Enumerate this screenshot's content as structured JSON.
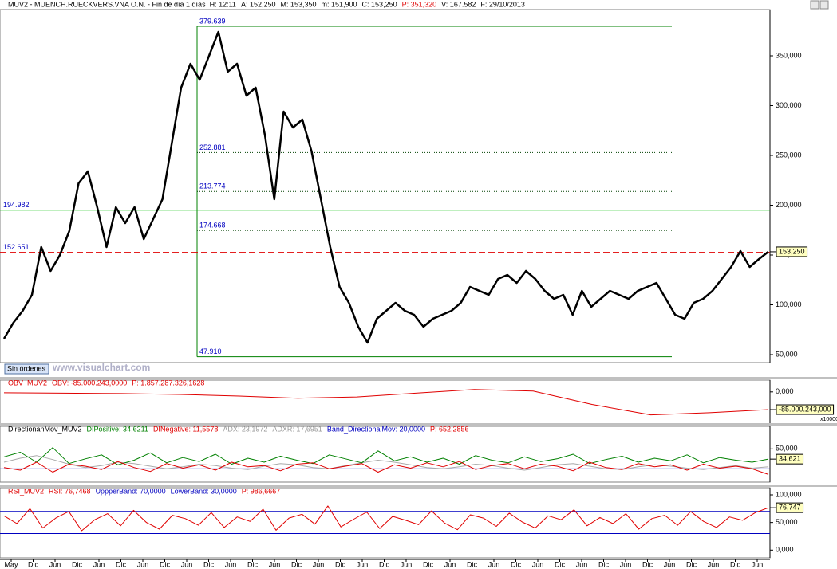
{
  "chart_data": [
    {
      "type": "line",
      "title": "MUV2 - MUENCH.RUECKVERS.VNA O.N. - Fin de día 1 días",
      "items": [
        {
          "text": "H: 12:11",
          "color": "#000000"
        },
        {
          "text": "A: 152,250",
          "color": "#000000"
        },
        {
          "text": "M: 153,350",
          "color": "#000000"
        },
        {
          "text": "m: 151,900",
          "color": "#000000"
        },
        {
          "text": "C: 153,250",
          "color": "#000000"
        },
        {
          "text": "P: 351,320",
          "color": "#e00000"
        },
        {
          "text": "V: 167.582",
          "color": "#000000"
        },
        {
          "text": "F: 29/10/2013",
          "color": "#000000"
        }
      ],
      "series": [
        {
          "color": "#000000",
          "values": [
            66,
            82,
            94,
            110,
            158,
            134,
            150,
            174,
            222,
            234,
            198,
            158,
            198,
            182,
            198,
            166,
            186,
            206,
            262,
            318,
            342,
            326,
            350,
            374,
            334,
            342,
            310,
            318,
            270,
            206,
            294,
            278,
            286,
            254,
            206,
            158,
            118,
            102,
            78,
            62,
            86,
            94,
            102,
            94,
            90,
            78,
            86,
            90,
            94,
            102,
            118,
            114,
            110,
            126,
            130,
            122,
            134,
            126,
            114,
            106,
            110,
            90,
            114,
            98,
            106,
            114,
            110,
            106,
            114,
            118,
            122,
            106,
            90,
            86,
            102,
            106,
            114,
            126,
            138,
            154,
            138,
            146,
            153.25
          ]
        }
      ],
      "ylim": [
        42,
        396.4
      ],
      "yticks": [
        {
          "value": 50,
          "label": "50,000"
        },
        {
          "value": 100,
          "label": "100,000"
        },
        {
          "value": 150,
          "label": "150,000"
        },
        {
          "value": 200,
          "label": "200,000"
        },
        {
          "value": 250,
          "label": "250,000"
        },
        {
          "value": 300,
          "label": "300,000"
        },
        {
          "value": 350,
          "label": "350,000"
        }
      ],
      "last_value": {
        "value": 153.25,
        "label": "153,250"
      },
      "fib_levels": [
        {
          "value": 379.639,
          "label": "379.639"
        },
        {
          "value": 252.881,
          "label": "252.881"
        },
        {
          "value": 213.774,
          "label": "213.774"
        },
        {
          "value": 174.668,
          "label": "174.668"
        },
        {
          "value": 47.91,
          "label": "47.910"
        }
      ],
      "lines": [
        {
          "value": 194.982,
          "label": "194.982",
          "color": "#00c000",
          "dash": "none"
        },
        {
          "value": 152.651,
          "label": "152.651",
          "color": "#e00000",
          "dash": "8 4"
        }
      ],
      "watermark": "www.visualchart.com",
      "button": "Sin órdenes"
    },
    {
      "type": "line",
      "items": [
        {
          "text": "OBV_MUV2",
          "color": "#e00000"
        },
        {
          "text": "OBV: -85.000.243,0000",
          "color": "#e00000"
        },
        {
          "text": "P: 1.857.287.326,1628",
          "color": "#e00000"
        }
      ],
      "series": [
        {
          "color": "#e00000",
          "values": [
            -4000000,
            -6000000,
            -8000000,
            -12000000,
            -20000000,
            -30000000,
            -24000000,
            -6000000,
            12000000,
            4000000,
            -60000000,
            -110000000,
            -100000000,
            -85000243
          ]
        }
      ],
      "ylim": [
        -153800000,
        56700000
      ],
      "yticks": [
        {
          "value": 0,
          "label": "0,000"
        }
      ],
      "last_value": {
        "value": -85000243,
        "label": "-85.000.243,000"
      },
      "scale_note": "x10000"
    },
    {
      "type": "line",
      "items": [
        {
          "text": "DirectionanMov_MUV2",
          "color": "#000000"
        },
        {
          "text": "DIPositive: 34,6211",
          "color": "#008000"
        },
        {
          "text": "DINegative: 11,5578",
          "color": "#e00000"
        },
        {
          "text": "ADX: 23,1972",
          "color": "#999999"
        },
        {
          "text": "ADXR: 17,6951",
          "color": "#999999"
        },
        {
          "text": "Band_DirectionalMov: 20,0000",
          "color": "#0000c0"
        },
        {
          "text": "P: 652,2856",
          "color": "#e00000"
        }
      ],
      "series": [
        {
          "color": "#aaaaaa",
          "values": [
            30,
            36,
            40,
            34,
            27,
            22,
            25,
            30,
            28,
            24,
            20,
            23,
            27,
            25,
            21,
            19,
            24,
            28,
            26,
            22,
            20,
            25,
            29,
            33,
            30,
            26,
            22,
            20,
            23,
            27,
            25,
            21,
            18,
            22,
            26,
            28,
            24,
            20,
            19,
            23,
            26,
            24,
            21,
            19,
            22,
            25,
            21,
            23.1972
          ]
        },
        {
          "color": "#008000",
          "values": [
            38,
            45,
            30,
            52,
            28,
            35,
            41,
            26,
            33,
            44,
            29,
            37,
            31,
            42,
            27,
            36,
            30,
            39,
            33,
            28,
            41,
            35,
            29,
            47,
            32,
            38,
            30,
            36,
            27,
            40,
            33,
            29,
            38,
            31,
            35,
            42,
            28,
            34,
            39,
            30,
            36,
            32,
            41,
            29,
            37,
            33,
            30,
            34.6211
          ]
        },
        {
          "color": "#e00000",
          "values": [
            22,
            18,
            30,
            15,
            27,
            24,
            19,
            31,
            22,
            16,
            28,
            21,
            26,
            18,
            30,
            23,
            25,
            17,
            27,
            29,
            20,
            24,
            28,
            15,
            26,
            21,
            29,
            23,
            31,
            19,
            25,
            28,
            20,
            27,
            24,
            17,
            30,
            22,
            19,
            28,
            23,
            26,
            18,
            27,
            21,
            24,
            20,
            11.5578
          ]
        }
      ],
      "ylim": [
        0,
        84
      ],
      "yticks": [
        {
          "value": 50,
          "label": "50,000"
        }
      ],
      "bands": [
        20
      ],
      "last_value": {
        "value": 34.6211,
        "label": "34,621"
      }
    },
    {
      "type": "line",
      "items": [
        {
          "text": "RSI_MUV2",
          "color": "#e00000"
        },
        {
          "text": "RSI: 76,7468",
          "color": "#e00000"
        },
        {
          "text": "UppperBand: 70,0000",
          "color": "#0000c0"
        },
        {
          "text": "LowerBand: 30,0000",
          "color": "#0000c0"
        },
        {
          "text": "P: 986,6667",
          "color": "#e00000"
        }
      ],
      "series": [
        {
          "color": "#e00000",
          "values": [
            62,
            48,
            75,
            40,
            58,
            70,
            35,
            55,
            66,
            44,
            72,
            50,
            38,
            63,
            57,
            45,
            68,
            41,
            60,
            52,
            74,
            36,
            58,
            65,
            47,
            80,
            42,
            56,
            69,
            39,
            61,
            54,
            46,
            71,
            49,
            37,
            64,
            58,
            43,
            67,
            51,
            40,
            62,
            55,
            73,
            44,
            59,
            48,
            66,
            38,
            57,
            63,
            45,
            70,
            52,
            41,
            60,
            54,
            68,
            76.7468
          ]
        }
      ],
      "ylim": [
        -14,
        113
      ],
      "yticks": [
        {
          "value": 0,
          "label": "0,000"
        },
        {
          "value": 50,
          "label": "50,000"
        },
        {
          "value": 100,
          "label": "100,000"
        }
      ],
      "bands": [
        70,
        30
      ],
      "last_value": {
        "value": 76.7468,
        "label": "76,747"
      }
    }
  ],
  "x_labels": [
    "May",
    "Dic",
    "Jun",
    "Dic",
    "Jun",
    "Dic",
    "Jun",
    "Dic",
    "Jun",
    "Dic",
    "Jun",
    "Dic",
    "Jun",
    "Dic",
    "Jun",
    "Dic",
    "Jun",
    "Dic",
    "Jun",
    "Dic",
    "Jun",
    "Dic",
    "Jun",
    "Dic",
    "Jun",
    "Dic",
    "Jun",
    "Dic",
    "Jun",
    "Dic",
    "Jun",
    "Dic",
    "Jun",
    "Dic",
    "Jun"
  ]
}
